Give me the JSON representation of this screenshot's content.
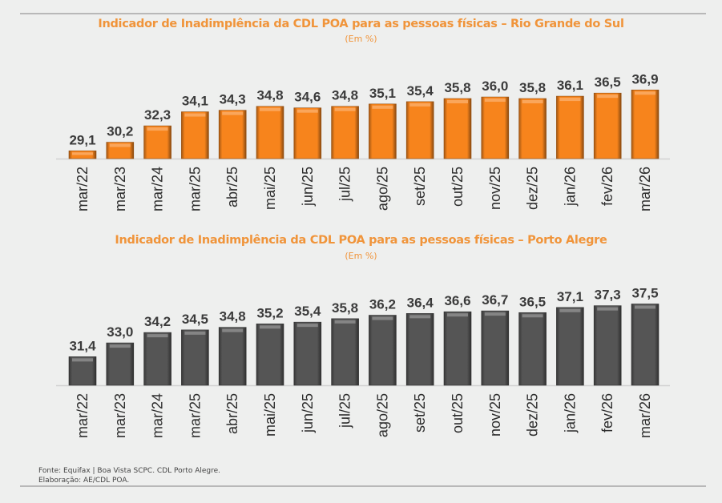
{
  "source_line": "Fonte: Equifax | Boa Vista SCPC. CDL Porto Alegre.",
  "elaboration_line": "Elaboração: AE/CDL POA.",
  "chart_data": [
    {
      "type": "bar",
      "title": "Indicador de Inadimplência da CDL POA para as pessoas físicas – Rio Grande do Sul",
      "subtitle": "(Em %)",
      "xlabel": "",
      "ylabel": "",
      "categories": [
        "mar/22",
        "mar/23",
        "mar/24",
        "mar/25",
        "abr/25",
        "mai/25",
        "jun/25",
        "jul/25",
        "ago/25",
        "set/25",
        "out/25",
        "nov/25",
        "dez/25",
        "jan/26",
        "fev/26",
        "mar/26"
      ],
      "values": [
        29.1,
        30.2,
        32.3,
        34.1,
        34.3,
        34.8,
        34.6,
        34.8,
        35.1,
        35.4,
        35.8,
        36.0,
        35.8,
        36.1,
        36.5,
        36.9
      ],
      "value_labels": [
        "29,1",
        "30,2",
        "32,3",
        "34,1",
        "34,3",
        "34,8",
        "34,6",
        "34,8",
        "35,1",
        "35,4",
        "35,8",
        "36,0",
        "35,8",
        "36,1",
        "36,5",
        "36,9"
      ],
      "ylim": [
        28.1,
        38
      ],
      "grid": false,
      "legend": "none",
      "color": "#f7841c"
    },
    {
      "type": "bar",
      "title": "Indicador de Inadimplência da CDL POA para as pessoas físicas – Porto Alegre",
      "subtitle": "(Em %)",
      "xlabel": "",
      "ylabel": "",
      "categories": [
        "mar/22",
        "mar/23",
        "mar/24",
        "mar/25",
        "abr/25",
        "mai/25",
        "jun/25",
        "jul/25",
        "ago/25",
        "set/25",
        "out/25",
        "nov/25",
        "dez/25",
        "jan/26",
        "fev/26",
        "mar/26"
      ],
      "values": [
        31.4,
        33.0,
        34.2,
        34.5,
        34.8,
        35.2,
        35.4,
        35.8,
        36.2,
        36.4,
        36.6,
        36.7,
        36.5,
        37.1,
        37.3,
        37.5
      ],
      "value_labels": [
        "31,4",
        "33,0",
        "34,2",
        "34,5",
        "34,8",
        "35,2",
        "35,4",
        "35,8",
        "36,2",
        "36,4",
        "36,6",
        "36,7",
        "36,5",
        "37,1",
        "37,3",
        "37,5"
      ],
      "ylim": [
        28.1,
        38.2
      ],
      "grid": false,
      "legend": "none",
      "color": "#555555"
    }
  ]
}
